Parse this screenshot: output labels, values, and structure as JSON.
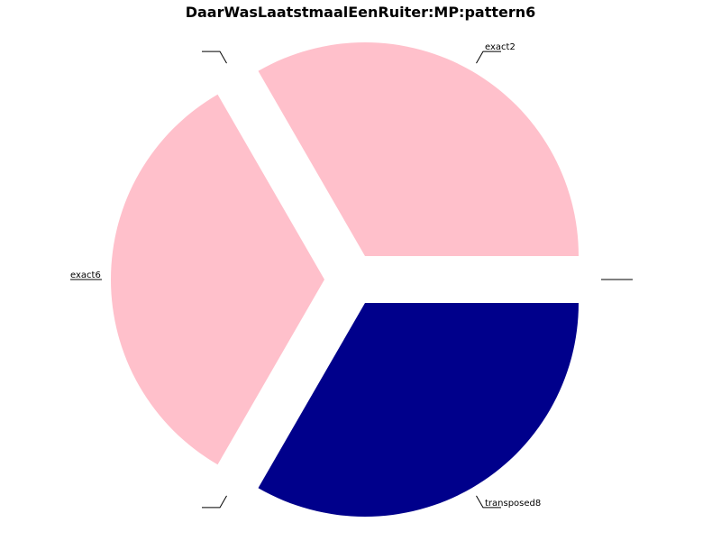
{
  "chart_data": {
    "type": "pie",
    "title": "DaarWasLaatstmaalEenRuiter:MP:pattern6",
    "slices": [
      {
        "label": "exact2",
        "value": 1,
        "color": "#ffc0cb"
      },
      {
        "label": "",
        "value": 0,
        "color": "#ffc0cb"
      },
      {
        "label": "exact6",
        "value": 1,
        "color": "#ffc0cb"
      },
      {
        "label": "",
        "value": 0,
        "color": "#00008b"
      },
      {
        "label": "transposed8",
        "value": 1,
        "color": "#00008b"
      },
      {
        "label": "",
        "value": 0,
        "color": "#00008b"
      }
    ],
    "legend": "none"
  }
}
